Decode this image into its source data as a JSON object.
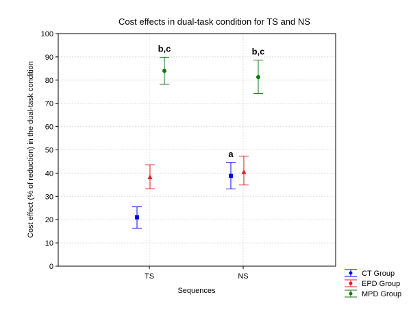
{
  "chart_data": {
    "type": "scatter",
    "title": "Cost effects in dual-task condition for TS and NS",
    "xlabel": "Sequences",
    "ylabel": "Cost effect (% of reduction) in the dual-task condition",
    "categories": [
      "TS",
      "NS"
    ],
    "ylim": [
      0,
      100
    ],
    "yticks": [
      0,
      10,
      20,
      30,
      40,
      50,
      60,
      70,
      80,
      90,
      100
    ],
    "grid": true,
    "legend_position": "bottom-right-outside",
    "series": [
      {
        "name": "CT Group",
        "color": "#0000e0",
        "marker": "square",
        "values": [
          21,
          38.8
        ],
        "lower": [
          16.3,
          33.2
        ],
        "upper": [
          25.5,
          44.6
        ],
        "annotations": [
          "",
          "a"
        ]
      },
      {
        "name": "EPD Group",
        "color": "#e02020",
        "marker": "triangle",
        "values": [
          38.3,
          40.5
        ],
        "lower": [
          33.3,
          34.9
        ],
        "upper": [
          43.6,
          47.3
        ],
        "annotations": [
          "",
          ""
        ]
      },
      {
        "name": "MPD Group",
        "color": "#117711",
        "marker": "circle",
        "values": [
          84,
          81.3
        ],
        "lower": [
          78.2,
          74.2
        ],
        "upper": [
          89.8,
          88.6
        ],
        "annotations": [
          "b,c",
          "b,c"
        ]
      }
    ]
  }
}
